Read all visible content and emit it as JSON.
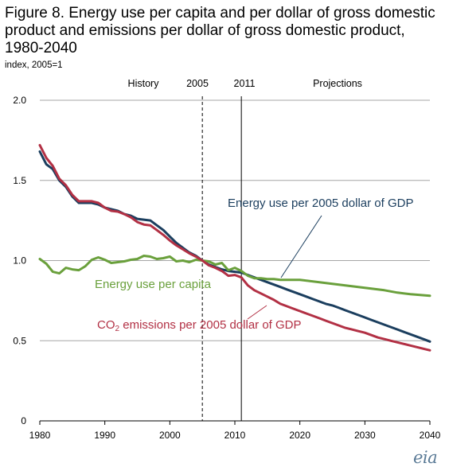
{
  "header": {
    "title": "Figure 8. Energy use per capita and per dollar of gross domestic product and emissions per dollar of gross domestic product, 1980-2040",
    "subtitle": "index, 2005=1"
  },
  "era_labels": {
    "history": "History",
    "y2005": "2005",
    "y2011": "2011",
    "projections": "Projections"
  },
  "series_labels": {
    "gdp_energy": "Energy use per 2005 dollar of GDP",
    "per_capita": "Energy use per capita",
    "co2_prefix": "CO",
    "co2_sub": "2",
    "co2_suffix": " emissions per 2005 dollar of GDP"
  },
  "logo": "eia",
  "chart_data": {
    "type": "line",
    "xlim": [
      1980,
      2040
    ],
    "ylim": [
      0,
      2.0
    ],
    "x_ticks": [
      1980,
      1990,
      2000,
      2010,
      2020,
      2030,
      2040
    ],
    "y_ticks": [
      0,
      0.5,
      1.0,
      1.5,
      2.0
    ],
    "y_tick_labels": [
      "0",
      "0.5",
      "1.0",
      "1.5",
      "2.0"
    ],
    "grid": "horizontal",
    "reference_lines": [
      {
        "x": 2005,
        "style": "dashed"
      },
      {
        "x": 2011,
        "style": "solid"
      }
    ],
    "colors": {
      "gdp_energy": "#1b3e5e",
      "per_capita": "#6aa03c",
      "co2": "#b23044"
    },
    "series": [
      {
        "key": "gdp_energy",
        "x": [
          1980,
          1981,
          1982,
          1983,
          1984,
          1985,
          1986,
          1987,
          1988,
          1989,
          1990,
          1991,
          1992,
          1993,
          1994,
          1995,
          1996,
          1997,
          1998,
          1999,
          2000,
          2001,
          2002,
          2003,
          2004,
          2005,
          2006,
          2007,
          2008,
          2009,
          2010,
          2011,
          2012,
          2013,
          2014,
          2015,
          2016,
          2017,
          2018,
          2019,
          2020,
          2021,
          2022,
          2023,
          2024,
          2025,
          2026,
          2027,
          2028,
          2029,
          2030,
          2031,
          2032,
          2033,
          2034,
          2035,
          2036,
          2037,
          2038,
          2039,
          2040
        ],
        "values": [
          1.68,
          1.6,
          1.57,
          1.5,
          1.46,
          1.4,
          1.36,
          1.36,
          1.36,
          1.35,
          1.33,
          1.32,
          1.31,
          1.29,
          1.28,
          1.26,
          1.255,
          1.25,
          1.22,
          1.19,
          1.15,
          1.11,
          1.08,
          1.05,
          1.03,
          1.0,
          0.975,
          0.96,
          0.945,
          0.935,
          0.93,
          0.925,
          0.91,
          0.895,
          0.88,
          0.865,
          0.85,
          0.835,
          0.82,
          0.805,
          0.79,
          0.775,
          0.76,
          0.745,
          0.73,
          0.72,
          0.705,
          0.69,
          0.675,
          0.66,
          0.645,
          0.63,
          0.615,
          0.6,
          0.585,
          0.57,
          0.555,
          0.54,
          0.525,
          0.51,
          0.495
        ]
      },
      {
        "key": "per_capita",
        "x": [
          1980,
          1981,
          1982,
          1983,
          1984,
          1985,
          1986,
          1987,
          1988,
          1989,
          1990,
          1991,
          1992,
          1993,
          1994,
          1995,
          1996,
          1997,
          1998,
          1999,
          2000,
          2001,
          2002,
          2003,
          2004,
          2005,
          2006,
          2007,
          2008,
          2009,
          2010,
          2011,
          2012,
          2013,
          2014,
          2015,
          2016,
          2017,
          2018,
          2019,
          2020,
          2025,
          2030,
          2033,
          2035,
          2037,
          2040
        ],
        "values": [
          1.01,
          0.98,
          0.93,
          0.92,
          0.955,
          0.945,
          0.94,
          0.965,
          1.005,
          1.02,
          1.005,
          0.985,
          0.99,
          0.995,
          1.005,
          1.01,
          1.03,
          1.025,
          1.01,
          1.015,
          1.025,
          0.995,
          1.0,
          0.99,
          1.005,
          1.0,
          0.995,
          0.975,
          0.985,
          0.94,
          0.955,
          0.935,
          0.905,
          0.89,
          0.89,
          0.885,
          0.885,
          0.88,
          0.88,
          0.88,
          0.88,
          0.855,
          0.83,
          0.815,
          0.8,
          0.79,
          0.78
        ]
      },
      {
        "key": "co2",
        "x": [
          1980,
          1981,
          1982,
          1983,
          1984,
          1985,
          1986,
          1987,
          1988,
          1989,
          1990,
          1991,
          1992,
          1993,
          1994,
          1995,
          1996,
          1997,
          1998,
          1999,
          2000,
          2001,
          2002,
          2003,
          2004,
          2005,
          2006,
          2007,
          2008,
          2009,
          2010,
          2011,
          2012,
          2013,
          2014,
          2015,
          2016,
          2017,
          2018,
          2019,
          2020,
          2021,
          2022,
          2023,
          2024,
          2025,
          2026,
          2027,
          2028,
          2029,
          2030,
          2031,
          2032,
          2033,
          2034,
          2035,
          2036,
          2037,
          2038,
          2039,
          2040
        ],
        "values": [
          1.72,
          1.64,
          1.59,
          1.51,
          1.47,
          1.41,
          1.37,
          1.37,
          1.37,
          1.36,
          1.33,
          1.31,
          1.305,
          1.29,
          1.27,
          1.24,
          1.225,
          1.22,
          1.19,
          1.16,
          1.125,
          1.095,
          1.07,
          1.045,
          1.025,
          1.0,
          0.97,
          0.955,
          0.935,
          0.905,
          0.91,
          0.895,
          0.845,
          0.815,
          0.795,
          0.775,
          0.755,
          0.73,
          0.715,
          0.7,
          0.685,
          0.67,
          0.655,
          0.64,
          0.625,
          0.61,
          0.595,
          0.58,
          0.57,
          0.56,
          0.55,
          0.535,
          0.52,
          0.51,
          0.5,
          0.49,
          0.48,
          0.47,
          0.46,
          0.45,
          0.44
        ]
      }
    ]
  }
}
